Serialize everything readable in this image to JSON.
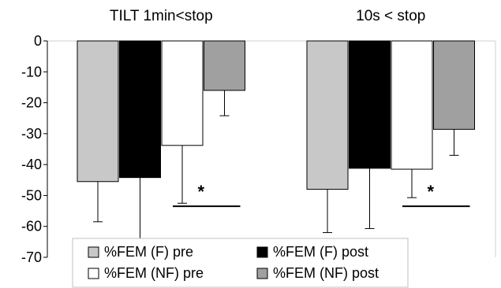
{
  "chart_data": {
    "type": "bar",
    "categories": [
      "TILT 1min<stop",
      "10s < stop"
    ],
    "series": [
      {
        "name": "%FEM (F) pre",
        "values": [
          -45.5,
          -48.0
        ],
        "errors": [
          13.0,
          14.0
        ],
        "color": "#c8c8c8"
      },
      {
        "name": "%FEM (F) post",
        "values": [
          -44.2,
          -41.2
        ],
        "errors": [
          20.8,
          19.5
        ],
        "color": "#000000"
      },
      {
        "name": "%FEM (NF) pre",
        "values": [
          -33.8,
          -41.5
        ],
        "errors": [
          18.7,
          9.2
        ],
        "color": "#ffffff"
      },
      {
        "name": "%FEM (NF) post",
        "values": [
          -16.0,
          -28.6
        ],
        "errors": [
          8.2,
          8.4
        ],
        "color": "#a0a0a0"
      }
    ],
    "significance": [
      {
        "category": 0,
        "label": "*"
      },
      {
        "category": 1,
        "label": "*"
      }
    ],
    "ylim": [
      -70,
      0
    ],
    "yticks": [
      0,
      -10,
      -20,
      -30,
      -40,
      -50,
      -60,
      -70
    ],
    "xlabel": "",
    "ylabel": "",
    "legend": "bottom-center",
    "grid": false
  }
}
